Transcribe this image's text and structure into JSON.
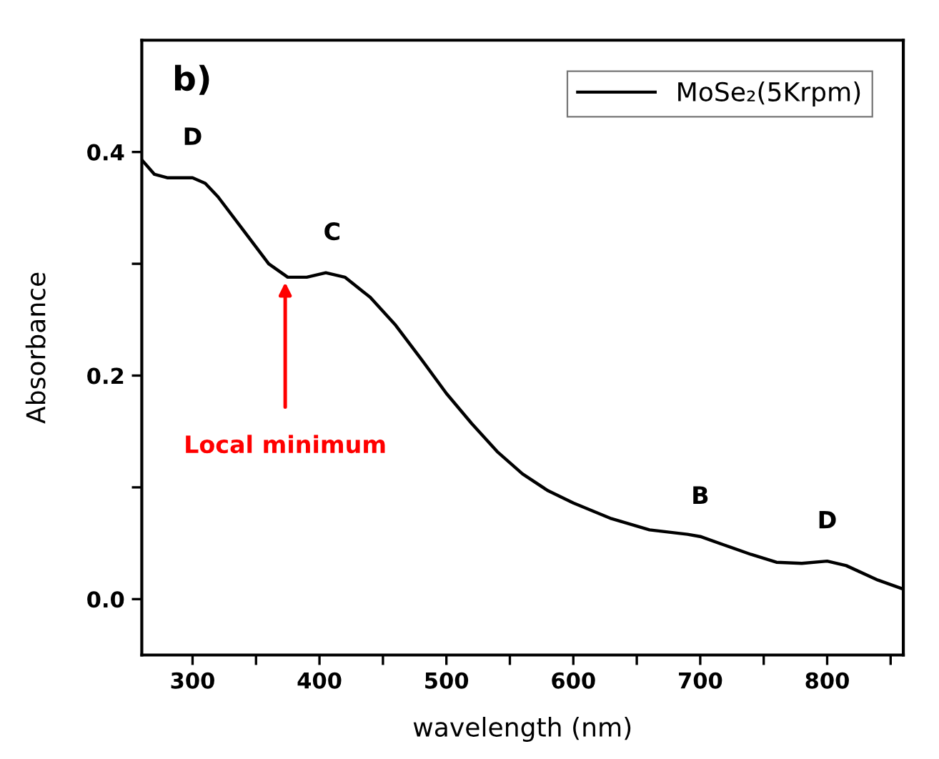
{
  "chart_data": {
    "type": "line",
    "xlabel": "wavelength (nm)",
    "ylabel": "Absorbance",
    "x": [
      260,
      270,
      280,
      300,
      310,
      320,
      340,
      360,
      375,
      390,
      405,
      420,
      440,
      460,
      480,
      500,
      520,
      540,
      560,
      580,
      600,
      630,
      660,
      690,
      700,
      720,
      740,
      760,
      780,
      800,
      815,
      840,
      860
    ],
    "series": [
      {
        "name": "MoSe₂(5Krpm)",
        "color": "#000000",
        "values": [
          0.393,
          0.38,
          0.377,
          0.377,
          0.372,
          0.36,
          0.33,
          0.3,
          0.288,
          0.288,
          0.292,
          0.288,
          0.27,
          0.245,
          0.215,
          0.184,
          0.157,
          0.132,
          0.112,
          0.097,
          0.086,
          0.072,
          0.062,
          0.058,
          0.056,
          0.048,
          0.04,
          0.033,
          0.032,
          0.034,
          0.03,
          0.017,
          0.009
        ]
      }
    ],
    "xlim": [
      260,
      860
    ],
    "ylim": [
      -0.05,
      0.5
    ],
    "xticks": [
      300,
      {
        "value": 350,
        "label": null
      },
      400,
      {
        "value": 450,
        "label": null
      },
      500,
      {
        "value": 550,
        "label": null
      },
      600,
      {
        "value": 650,
        "label": null
      },
      700,
      {
        "value": 750,
        "label": null
      },
      800,
      {
        "value": 850,
        "label": null
      }
    ],
    "yticks": [
      {
        "value": 0.0,
        "label": "0.0"
      },
      {
        "value": 0.1,
        "label": null
      },
      0.2,
      {
        "value": 0.3,
        "label": null
      },
      0.4
    ],
    "annotations": [
      "b)",
      {
        "text": "D",
        "x": 300,
        "y": 0.377
      },
      {
        "text": "C",
        "x": 410,
        "y": 0.292
      },
      {
        "text": "B",
        "x": 700,
        "y": 0.056
      },
      {
        "text": "D",
        "x": 800,
        "y": 0.034
      },
      {
        "text": "Local minimum",
        "x": 373,
        "y": 0.287
      }
    ],
    "grid": false,
    "legend": "top right",
    "marker": "none",
    "line_style": "solid"
  }
}
